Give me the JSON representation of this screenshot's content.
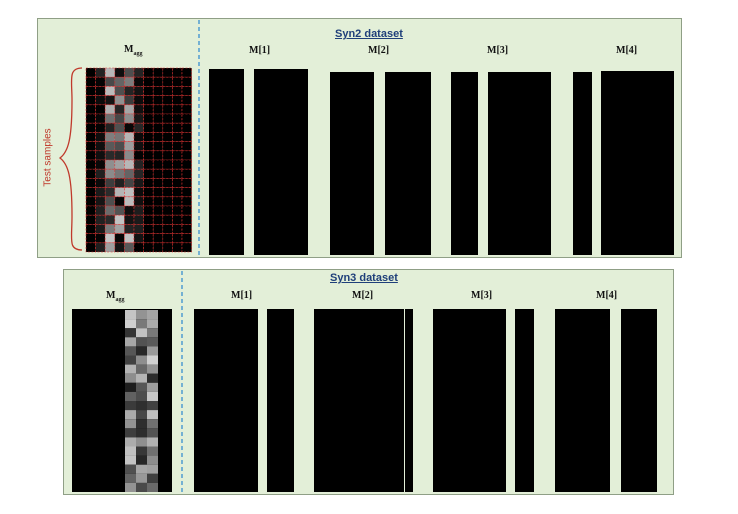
{
  "panels": [
    {
      "title": "Syn2 dataset",
      "agg_label": "M",
      "agg_sub": "agg",
      "side_label": "Test samples",
      "mask_labels": [
        "M[1]",
        "M[2]",
        "M[3]",
        "M[4]"
      ]
    },
    {
      "title": "Syn3 dataset",
      "agg_label": "M",
      "agg_sub": "agg",
      "mask_labels": [
        "M[1]",
        "M[2]",
        "M[3]",
        "M[4]"
      ]
    }
  ],
  "colors": {
    "panel_bg": "#e3efd8",
    "divider": "#3a8fd0",
    "grid_red": "#e03030",
    "title_blue": "#1f3f7a"
  }
}
